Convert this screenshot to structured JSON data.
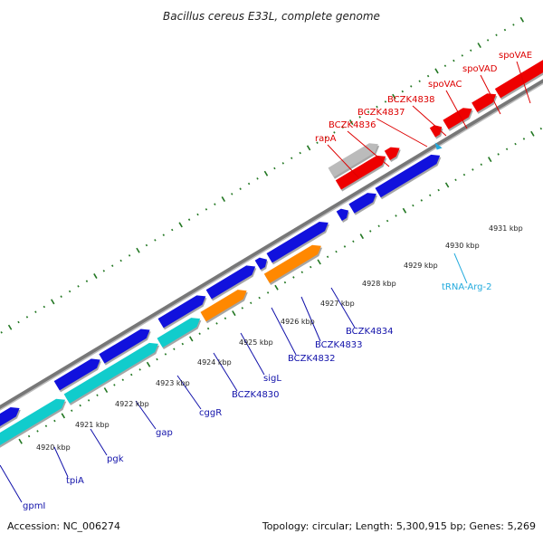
{
  "title": "Bacillus cereus E33L, complete genome",
  "footer": {
    "accession": "Accession: NC_006274",
    "summary": "Topology: circular; Length: 5,300,915 bp; Genes: 5,269"
  },
  "colors": {
    "red": "#ee0000",
    "blue": "#1111dd",
    "cyan": "#11cccc",
    "orange": "#ff8800",
    "gray": "#bbbbbb",
    "trna": "#22aadd",
    "label_red": "#dd0000",
    "label_blue": "#1111aa",
    "label_cyan": "#22aadd",
    "tick": "#227722",
    "backbone": "#888888"
  },
  "kbp_labels": [
    "4920 kbp",
    "4921 kbp",
    "4922 kbp",
    "4923 kbp",
    "4924 kbp",
    "4925 kbp",
    "4926 kbp",
    "4927 kbp",
    "4928 kbp",
    "4929 kbp",
    "4930 kbp",
    "4931 kbp"
  ],
  "top_labels": [
    "rapA",
    "BCZK4836",
    "BCZK4837",
    "BCZK4838",
    "spoVAC",
    "spoVAD",
    "spoVAE"
  ],
  "bottom_labels": [
    "gpmI",
    "tpiA",
    "pgk",
    "gap",
    "cggR",
    "BCZK4830",
    "sigL",
    "BCZK4832",
    "BCZK4833",
    "BCZK4834",
    "tRNA-Arg-2"
  ]
}
